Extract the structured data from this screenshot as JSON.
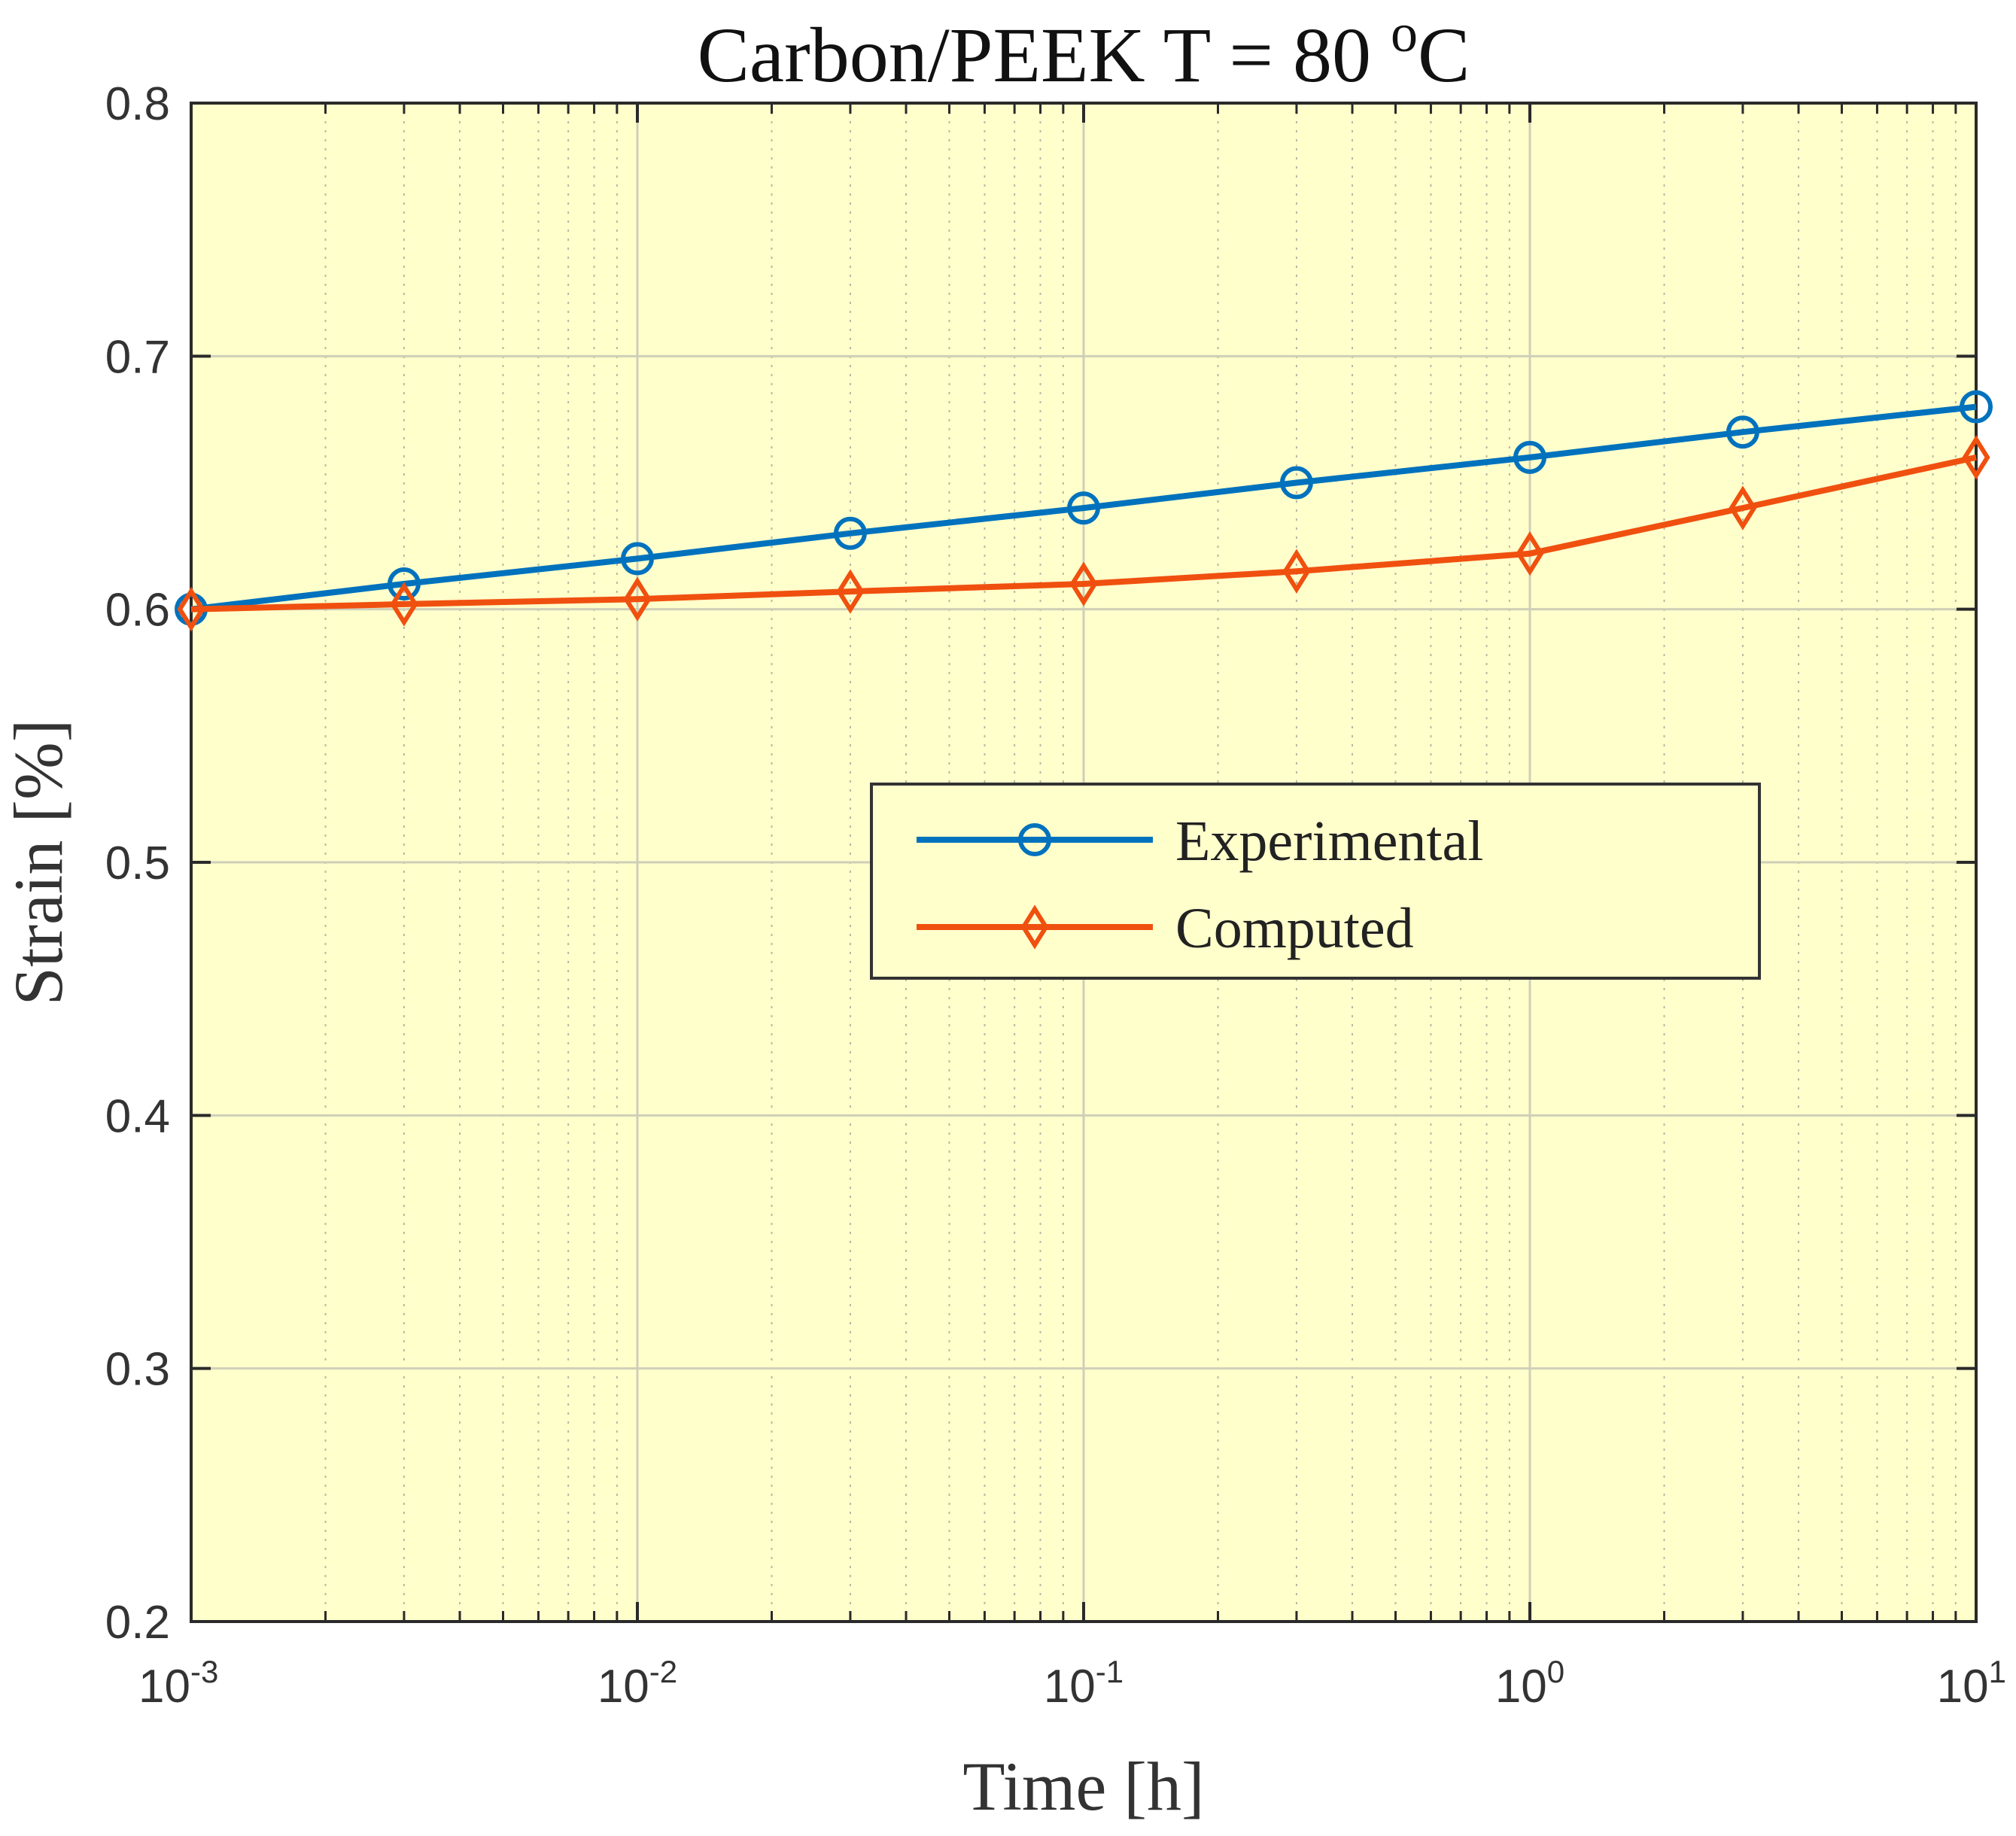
{
  "chart_data": {
    "type": "line",
    "title": "Carbon/PEEK  T = 80 oC",
    "title_parts": {
      "main": "Carbon/PEEK  T = 80 ",
      "superscript": "o",
      "unit": "C"
    },
    "xlabel": "Time [h]",
    "ylabel": "Strain [%]",
    "xscale": "log",
    "xlim": [
      0.001,
      10
    ],
    "ylim": [
      0.2,
      0.8
    ],
    "x_ticks": [
      {
        "value": 0.001,
        "base": "10",
        "exp": "-3"
      },
      {
        "value": 0.01,
        "base": "10",
        "exp": "-2"
      },
      {
        "value": 0.1,
        "base": "10",
        "exp": "-1"
      },
      {
        "value": 1,
        "base": "10",
        "exp": "0"
      },
      {
        "value": 10,
        "base": "10",
        "exp": "1"
      }
    ],
    "y_ticks": [
      {
        "value": 0.2,
        "label": "0.2"
      },
      {
        "value": 0.3,
        "label": "0.3"
      },
      {
        "value": 0.4,
        "label": "0.4"
      },
      {
        "value": 0.5,
        "label": "0.5"
      },
      {
        "value": 0.6,
        "label": "0.6"
      },
      {
        "value": 0.7,
        "label": "0.7"
      },
      {
        "value": 0.8,
        "label": "0.8"
      }
    ],
    "grid": true,
    "minor_grid": true,
    "background_color": "#FFFFCC",
    "legend_position": "center-right",
    "series": [
      {
        "name": "Experimental",
        "marker": "circle",
        "color": "#0072BD",
        "x": [
          0.001,
          0.003,
          0.01,
          0.03,
          0.1,
          0.3,
          1,
          3,
          10
        ],
        "y": [
          0.6,
          0.61,
          0.62,
          0.63,
          0.64,
          0.65,
          0.66,
          0.67,
          0.68
        ]
      },
      {
        "name": "Computed",
        "marker": "diamond",
        "color": "#F0500F",
        "x": [
          0.001,
          0.003,
          0.01,
          0.03,
          0.1,
          0.3,
          1,
          3,
          10
        ],
        "y": [
          0.6,
          0.602,
          0.604,
          0.607,
          0.61,
          0.615,
          0.622,
          0.64,
          0.66
        ]
      }
    ]
  }
}
